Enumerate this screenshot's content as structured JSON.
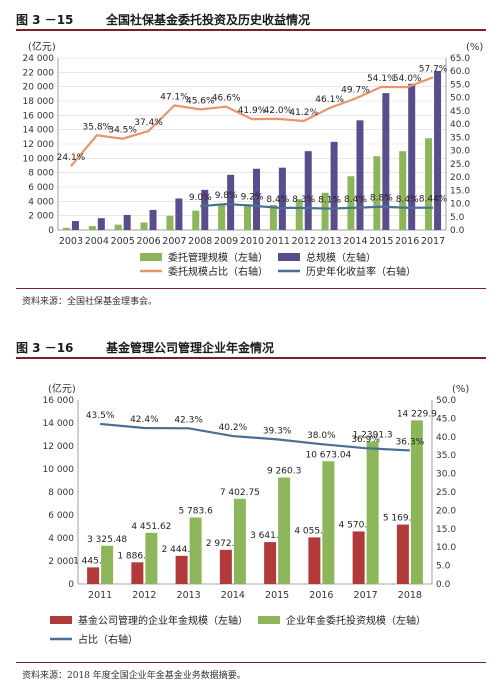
{
  "figures": [
    {
      "number": "图 3 －15",
      "title": "全国社保基金委托投资及历史收益情况",
      "source": "资料来源：全国社保基金理事会。"
    },
    {
      "number": "图 3 －16",
      "title": "基金管理公司管理企业年金情况",
      "source": "资料来源：2018 年度全国企业年金基金业务数据摘要。"
    }
  ],
  "colors": {
    "green": "#8db65a",
    "purple": "#5a4d8c",
    "orange": "#e8956a",
    "blue": "#4a6f96",
    "red": "#b23a3a",
    "accent_rule": "#7b1f2b"
  },
  "chart_data": [
    {
      "type": "bar",
      "title": "全国社保基金委托投资及历史收益情况",
      "ylabel_left": "(亿元)",
      "ylabel_right": "(%)",
      "ylim_left": [
        0,
        24000
      ],
      "ylim_right": [
        0,
        65
      ],
      "yticks_left": [
        "0",
        "2 000",
        "4 000",
        "6 000",
        "8 000",
        "10 000",
        "12 000",
        "14 000",
        "16 000",
        "18 000",
        "20 000",
        "22 000",
        "24 000"
      ],
      "yticks_right": [
        "0.0",
        "5.0",
        "10.0",
        "15.0",
        "20.0",
        "25.0",
        "30.0",
        "35.0",
        "40.0",
        "45.0",
        "50.0",
        "55.0",
        "60.0",
        "65.0"
      ],
      "categories": [
        "2003",
        "2004",
        "2005",
        "2006",
        "2007",
        "2008",
        "2009",
        "2010",
        "2011",
        "2012",
        "2013",
        "2014",
        "2015",
        "2016",
        "2017"
      ],
      "grid": true,
      "legend_position": "bottom",
      "series": [
        {
          "name": "委托管理规模（左轴）",
          "kind": "bar",
          "axis": "left",
          "color": "#8db65a",
          "values": [
            300,
            550,
            750,
            1050,
            2000,
            2700,
            3500,
            3600,
            3500,
            4300,
            5200,
            7500,
            10300,
            11000,
            12800
          ]
        },
        {
          "name": "总规模（左轴）",
          "kind": "bar",
          "axis": "left",
          "color": "#5a4d8c",
          "values": [
            1250,
            1650,
            2100,
            2800,
            4400,
            5600,
            7700,
            8550,
            8700,
            11000,
            12300,
            15300,
            19100,
            20400,
            22200
          ]
        },
        {
          "name": "委托规模占比（右轴）",
          "kind": "line",
          "axis": "right",
          "color": "#e8956a",
          "values": [
            24.1,
            35.8,
            34.5,
            37.4,
            47.1,
            45.6,
            46.6,
            41.9,
            42.0,
            41.2,
            46.1,
            49.7,
            54.1,
            54.0,
            57.7
          ],
          "labels": [
            "24.1%",
            "35.8%",
            "34.5%",
            "37.4%",
            "47.1%",
            "45.6%",
            "46.6%",
            "41.9%",
            "42.0%",
            "41.2%",
            "46.1%",
            "49.7%",
            "54.1%",
            "54.0%",
            "57.7%"
          ]
        },
        {
          "name": "历史年化收益率（右轴）",
          "kind": "line",
          "axis": "right",
          "color": "#4a6f96",
          "values": [
            null,
            null,
            null,
            null,
            null,
            9.0,
            9.8,
            9.2,
            8.4,
            8.3,
            8.1,
            8.4,
            8.8,
            8.4,
            8.44
          ],
          "labels": [
            "",
            "",
            "",
            "",
            "",
            "9.0%",
            "9.8%",
            "9.2%",
            "8.4%",
            "8.3%",
            "8.1%",
            "8.4%",
            "8.8%",
            "8.4%",
            "8.44%"
          ]
        }
      ]
    },
    {
      "type": "bar",
      "title": "基金管理公司管理企业年金情况",
      "ylabel_left": "(亿元)",
      "ylabel_right": "(%)",
      "ylim_left": [
        0,
        16000
      ],
      "ylim_right": [
        0,
        50
      ],
      "yticks_left": [
        "0",
        "2 000",
        "4 000",
        "6 000",
        "8 000",
        "10 000",
        "12 000",
        "14 000",
        "16 000"
      ],
      "yticks_right": [
        "0.0",
        "5.0",
        "10.0",
        "15.0",
        "20.0",
        "25.0",
        "30.0",
        "35.0",
        "40.0",
        "45.0",
        "50.0"
      ],
      "categories": [
        "2011",
        "2012",
        "2013",
        "2014",
        "2015",
        "2016",
        "2017",
        "2018"
      ],
      "grid": false,
      "legend_position": "bottom",
      "series": [
        {
          "name": "基金公司管理的企业年金规模（左轴）",
          "kind": "bar",
          "axis": "left",
          "color": "#b23a3a",
          "values": [
            1445.26,
            1886.33,
            2444.97,
            2972.75,
            3641.98,
            4055.11,
            4570.91,
            5169.7
          ],
          "labels": [
            "1 445.26",
            "1 886.33",
            "2 444.97",
            "2 972.75",
            "3 641.98",
            "4 055.11",
            "4 570.91",
            "5 169.70"
          ]
        },
        {
          "name": "企业年金委托投资规模（左轴）",
          "kind": "bar",
          "axis": "left",
          "color": "#8db65a",
          "values": [
            3325.48,
            4451.62,
            5783.6,
            7402.75,
            9260.3,
            10673.04,
            12391.3,
            14229.9
          ],
          "labels": [
            "3 325.48",
            "4 451.62",
            "5 783.6",
            "7 402.75",
            "9 260.3",
            "10 673.04",
            "1 2391.3",
            "14 229.9"
          ]
        },
        {
          "name": "占比（右轴）",
          "kind": "line",
          "axis": "right",
          "color": "#4a6f96",
          "values": [
            43.5,
            42.4,
            42.3,
            40.2,
            39.3,
            38.0,
            36.9,
            36.3
          ],
          "labels": [
            "43.5%",
            "42.4%",
            "42.3%",
            "40.2%",
            "39.3%",
            "38.0%",
            "36.9%",
            "36.3%"
          ]
        }
      ]
    }
  ]
}
